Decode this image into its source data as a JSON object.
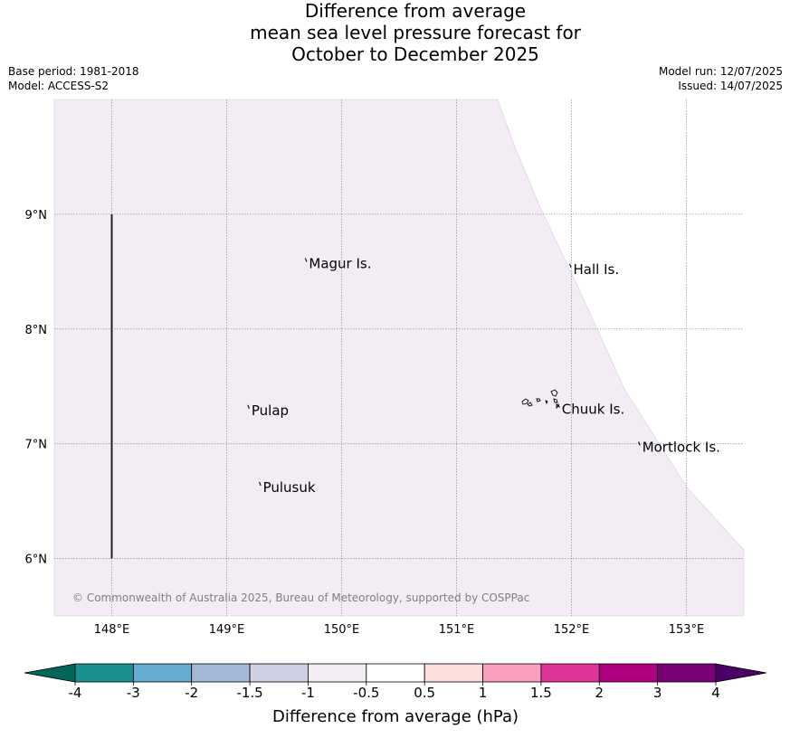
{
  "title_lines": [
    "Difference from average",
    "mean sea level pressure forecast for",
    "October to December 2025"
  ],
  "meta_left": [
    "Base period: 1981-2018",
    "Model: ACCESS-S2"
  ],
  "meta_right": [
    "Model run: 12/07/2025",
    "Issued: 14/07/2025"
  ],
  "map": {
    "lon_range": [
      147.5,
      153.5
    ],
    "lat_range": [
      5.5,
      10.0
    ],
    "lon_ticks": [
      {
        "value": 148,
        "label": "148°E"
      },
      {
        "value": 149,
        "label": "149°E"
      },
      {
        "value": 150,
        "label": "150°E"
      },
      {
        "value": 151,
        "label": "151°E"
      },
      {
        "value": 152,
        "label": "152°E"
      },
      {
        "value": 153,
        "label": "153°E"
      }
    ],
    "lat_ticks": [
      {
        "value": 9,
        "label": "9°N"
      },
      {
        "value": 8,
        "label": "8°N"
      },
      {
        "value": 7,
        "label": "7°N"
      },
      {
        "value": 6,
        "label": "6°N"
      }
    ],
    "field_color": "#f3ecf5",
    "places": [
      {
        "name": "Magur Is.",
        "lon": 149.7,
        "lat": 8.57
      },
      {
        "name": "Hall Is.",
        "lon": 152.0,
        "lat": 8.52
      },
      {
        "name": "Pulap",
        "lon": 149.2,
        "lat": 7.29
      },
      {
        "name": "Chuuk Is.",
        "lon": 151.9,
        "lat": 7.3
      },
      {
        "name": "Mortlock Is.",
        "lon": 152.6,
        "lat": 6.97
      },
      {
        "name": "Pulusuk",
        "lon": 149.3,
        "lat": 6.62
      }
    ],
    "copyright": "© Commonwealth of Australia 2025, Bureau of Meteorology, supported by COSPPac"
  },
  "colorbar": {
    "title": "Difference from average (hPa)",
    "labels": [
      "-4",
      "-3",
      "-2",
      "-1.5",
      "-1",
      "-0.5",
      "0.5",
      "1",
      "1.5",
      "2",
      "3",
      "4"
    ],
    "under_color": "#00665a",
    "over_color": "#4b0066",
    "colors": [
      "#1a9090",
      "#66abd0",
      "#a6b8d8",
      "#d0d0e4",
      "#f3ecf5",
      "#ffffff",
      "#fde0de",
      "#f9a0bc",
      "#dd3497",
      "#ae017e",
      "#7a0177"
    ]
  }
}
